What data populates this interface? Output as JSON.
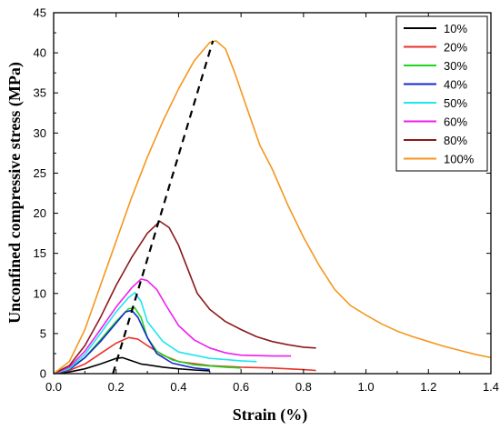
{
  "chart_data": {
    "type": "line",
    "xlabel": "Strain (%)",
    "ylabel": "Unconfined compressive stress (MPa)",
    "xlim": [
      0.0,
      1.4
    ],
    "ylim": [
      0,
      45
    ],
    "xticks": [
      0.0,
      0.2,
      0.4,
      0.6,
      0.8,
      1.0,
      1.2,
      1.4
    ],
    "yticks": [
      0,
      5,
      10,
      15,
      20,
      25,
      30,
      35,
      40,
      45
    ],
    "xtick_labels": [
      "0.0",
      "0.2",
      "0.4",
      "0.6",
      "0.8",
      "1.0",
      "1.2",
      "1.4"
    ],
    "ytick_labels": [
      "0",
      "5",
      "10",
      "15",
      "20",
      "25",
      "30",
      "35",
      "40",
      "45"
    ],
    "grid": false,
    "legend_position": "top-right",
    "series": [
      {
        "name": "10%",
        "color": "#000000",
        "points": [
          [
            0,
            0
          ],
          [
            0.05,
            0.2
          ],
          [
            0.1,
            0.6
          ],
          [
            0.15,
            1.2
          ],
          [
            0.2,
            1.9
          ],
          [
            0.22,
            2.0
          ],
          [
            0.25,
            1.6
          ],
          [
            0.28,
            1.2
          ],
          [
            0.3,
            1.1
          ],
          [
            0.35,
            0.8
          ],
          [
            0.4,
            0.6
          ],
          [
            0.45,
            0.45
          ],
          [
            0.5,
            0.35
          ]
        ]
      },
      {
        "name": "20%",
        "color": "#e8312a",
        "points": [
          [
            0,
            0
          ],
          [
            0.05,
            0.4
          ],
          [
            0.1,
            1.2
          ],
          [
            0.15,
            2.5
          ],
          [
            0.2,
            3.8
          ],
          [
            0.24,
            4.5
          ],
          [
            0.27,
            4.3
          ],
          [
            0.3,
            3.5
          ],
          [
            0.35,
            2.3
          ],
          [
            0.4,
            1.5
          ],
          [
            0.5,
            1.0
          ],
          [
            0.6,
            0.8
          ],
          [
            0.7,
            0.7
          ],
          [
            0.8,
            0.5
          ],
          [
            0.84,
            0.4
          ]
        ]
      },
      {
        "name": "30%",
        "color": "#1ed61e",
        "points": [
          [
            0,
            0
          ],
          [
            0.05,
            0.5
          ],
          [
            0.1,
            2.0
          ],
          [
            0.15,
            4.2
          ],
          [
            0.2,
            6.5
          ],
          [
            0.24,
            8.1
          ],
          [
            0.26,
            8.2
          ],
          [
            0.28,
            7.0
          ],
          [
            0.3,
            4.5
          ],
          [
            0.33,
            2.8
          ],
          [
            0.38,
            1.7
          ],
          [
            0.45,
            1.1
          ],
          [
            0.55,
            0.8
          ],
          [
            0.6,
            0.7
          ]
        ]
      },
      {
        "name": "40%",
        "color": "#1428cc",
        "points": [
          [
            0,
            0
          ],
          [
            0.05,
            0.5
          ],
          [
            0.1,
            2.0
          ],
          [
            0.15,
            4.0
          ],
          [
            0.2,
            6.3
          ],
          [
            0.23,
            7.7
          ],
          [
            0.25,
            7.9
          ],
          [
            0.27,
            7.0
          ],
          [
            0.3,
            4.5
          ],
          [
            0.33,
            2.5
          ],
          [
            0.38,
            1.3
          ],
          [
            0.45,
            0.7
          ],
          [
            0.5,
            0.5
          ]
        ]
      },
      {
        "name": "50%",
        "color": "#1ee6ee",
        "points": [
          [
            0,
            0
          ],
          [
            0.05,
            0.6
          ],
          [
            0.1,
            2.4
          ],
          [
            0.15,
            5.0
          ],
          [
            0.2,
            7.7
          ],
          [
            0.24,
            9.5
          ],
          [
            0.26,
            10.1
          ],
          [
            0.28,
            9.0
          ],
          [
            0.3,
            6.5
          ],
          [
            0.35,
            4.0
          ],
          [
            0.4,
            2.7
          ],
          [
            0.5,
            1.9
          ],
          [
            0.6,
            1.6
          ],
          [
            0.65,
            1.5
          ]
        ]
      },
      {
        "name": "60%",
        "color": "#ee1eee",
        "points": [
          [
            0,
            0
          ],
          [
            0.05,
            0.8
          ],
          [
            0.1,
            2.8
          ],
          [
            0.15,
            5.5
          ],
          [
            0.2,
            8.3
          ],
          [
            0.25,
            10.7
          ],
          [
            0.28,
            11.8
          ],
          [
            0.3,
            11.6
          ],
          [
            0.33,
            10.5
          ],
          [
            0.36,
            8.5
          ],
          [
            0.4,
            6.0
          ],
          [
            0.45,
            4.2
          ],
          [
            0.5,
            3.2
          ],
          [
            0.55,
            2.6
          ],
          [
            0.6,
            2.3
          ],
          [
            0.7,
            2.2
          ],
          [
            0.76,
            2.2
          ]
        ]
      },
      {
        "name": "80%",
        "color": "#8b1a1a",
        "points": [
          [
            0,
            0
          ],
          [
            0.05,
            1.0
          ],
          [
            0.1,
            3.5
          ],
          [
            0.15,
            7.0
          ],
          [
            0.2,
            11.0
          ],
          [
            0.25,
            14.5
          ],
          [
            0.3,
            17.5
          ],
          [
            0.34,
            19.0
          ],
          [
            0.37,
            18.2
          ],
          [
            0.4,
            16.0
          ],
          [
            0.43,
            13.0
          ],
          [
            0.46,
            10.0
          ],
          [
            0.5,
            8.0
          ],
          [
            0.55,
            6.5
          ],
          [
            0.6,
            5.5
          ],
          [
            0.65,
            4.6
          ],
          [
            0.7,
            4.0
          ],
          [
            0.75,
            3.6
          ],
          [
            0.8,
            3.3
          ],
          [
            0.84,
            3.2
          ]
        ]
      },
      {
        "name": "100%",
        "color": "#f5961e",
        "points": [
          [
            0,
            0
          ],
          [
            0.05,
            1.5
          ],
          [
            0.1,
            5.5
          ],
          [
            0.15,
            11.0
          ],
          [
            0.2,
            16.5
          ],
          [
            0.25,
            22.0
          ],
          [
            0.3,
            27.0
          ],
          [
            0.35,
            31.5
          ],
          [
            0.4,
            35.5
          ],
          [
            0.45,
            39.0
          ],
          [
            0.5,
            41.3
          ],
          [
            0.52,
            41.5
          ],
          [
            0.55,
            40.5
          ],
          [
            0.58,
            37.5
          ],
          [
            0.62,
            33.0
          ],
          [
            0.66,
            28.5
          ],
          [
            0.7,
            25.5
          ],
          [
            0.75,
            21.0
          ],
          [
            0.8,
            17.0
          ],
          [
            0.85,
            13.5
          ],
          [
            0.9,
            10.5
          ],
          [
            0.95,
            8.5
          ],
          [
            1.0,
            7.3
          ],
          [
            1.05,
            6.2
          ],
          [
            1.1,
            5.3
          ],
          [
            1.15,
            4.6
          ],
          [
            1.2,
            4.0
          ],
          [
            1.25,
            3.4
          ],
          [
            1.3,
            2.9
          ],
          [
            1.35,
            2.4
          ],
          [
            1.4,
            2.0
          ]
        ]
      }
    ],
    "peak_trend_line": {
      "style": "dashed",
      "color": "#000000",
      "points": [
        [
          0.19,
          0.0
        ],
        [
          0.51,
          41.5
        ]
      ]
    }
  }
}
